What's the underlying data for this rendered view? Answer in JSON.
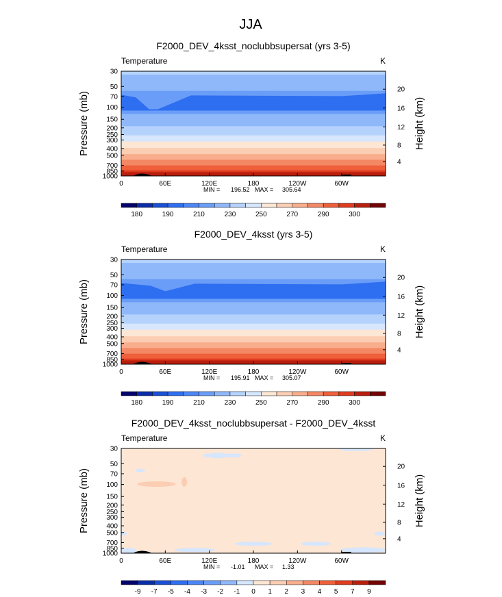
{
  "figure": {
    "title": "JJA"
  },
  "chart_data": [
    {
      "type": "heatmap",
      "title": "F2000_DEV_4ksst_noclubbsupersat (yrs 3-5)",
      "variable": "Temperature",
      "units": "K",
      "ylabel": "Pressure (mb)",
      "y2label": "Height (km)",
      "xticks": [
        "0",
        "60E",
        "120E",
        "180",
        "120W",
        "60W"
      ],
      "yticks": [
        30,
        50,
        70,
        100,
        150,
        200,
        250,
        300,
        400,
        500,
        700,
        850,
        1000
      ],
      "y2ticks": [
        4,
        8,
        12,
        16,
        20
      ],
      "ylim": [
        30,
        1000
      ],
      "xlim": [
        0,
        360
      ],
      "stats": {
        "min_label": "MIN = ",
        "min": "196.52",
        "max_label": "MAX = ",
        "max": "305.64"
      },
      "colorbar": {
        "levels": [
          175,
          180,
          185,
          190,
          200,
          210,
          220,
          230,
          240,
          250,
          260,
          270,
          280,
          290,
          295,
          300
        ],
        "labels": [
          "180",
          "190",
          "210",
          "230",
          "250",
          "270",
          "290",
          "300"
        ],
        "colors": [
          "#03036b",
          "#0a2ca8",
          "#1a4fd6",
          "#2e6ef0",
          "#4c86f5",
          "#6a9df7",
          "#8fb8fa",
          "#b4d2fc",
          "#d6e6fd",
          "#fde6d4",
          "#fbcdb2",
          "#f8ad8c",
          "#f48764",
          "#ee5f3a",
          "#df3b1e",
          "#b91e0d",
          "#720404"
        ]
      }
    },
    {
      "type": "heatmap",
      "title": "F2000_DEV_4ksst (yrs 3-5)",
      "variable": "Temperature",
      "units": "K",
      "ylabel": "Pressure (mb)",
      "y2label": "Height (km)",
      "xticks": [
        "0",
        "60E",
        "120E",
        "180",
        "120W",
        "60W"
      ],
      "yticks": [
        30,
        50,
        70,
        100,
        150,
        200,
        250,
        300,
        400,
        500,
        700,
        850,
        1000
      ],
      "y2ticks": [
        4,
        8,
        12,
        16,
        20
      ],
      "ylim": [
        30,
        1000
      ],
      "xlim": [
        0,
        360
      ],
      "stats": {
        "min_label": "MIN = ",
        "min": "195.91",
        "max_label": "MAX = ",
        "max": "305.07"
      },
      "colorbar": {
        "levels": [
          175,
          180,
          185,
          190,
          200,
          210,
          220,
          230,
          240,
          250,
          260,
          270,
          280,
          290,
          295,
          300
        ],
        "labels": [
          "180",
          "190",
          "210",
          "230",
          "250",
          "270",
          "290",
          "300"
        ],
        "colors": [
          "#03036b",
          "#0a2ca8",
          "#1a4fd6",
          "#2e6ef0",
          "#4c86f5",
          "#6a9df7",
          "#8fb8fa",
          "#b4d2fc",
          "#d6e6fd",
          "#fde6d4",
          "#fbcdb2",
          "#f8ad8c",
          "#f48764",
          "#ee5f3a",
          "#df3b1e",
          "#b91e0d",
          "#720404"
        ]
      }
    },
    {
      "type": "heatmap",
      "title": "F2000_DEV_4ksst_noclubbsupersat - F2000_DEV_4ksst",
      "variable": "Temperature",
      "units": "K",
      "ylabel": "Pressure (mb)",
      "y2label": "Height (km)",
      "xticks": [
        "0",
        "60E",
        "120E",
        "180",
        "120W",
        "60W"
      ],
      "yticks": [
        30,
        50,
        70,
        100,
        150,
        200,
        250,
        300,
        400,
        500,
        700,
        850,
        1000
      ],
      "y2ticks": [
        4,
        8,
        12,
        16,
        20
      ],
      "ylim": [
        30,
        1000
      ],
      "xlim": [
        0,
        360
      ],
      "stats": {
        "min_label": "MIN = ",
        "min": "-1.01",
        "max_label": "MAX = ",
        "max": "1.33"
      },
      "colorbar": {
        "labels": [
          "-9",
          "-7",
          "-5",
          "-4",
          "-3",
          "-2",
          "-1",
          "0",
          "1",
          "2",
          "3",
          "4",
          "5",
          "7",
          "9"
        ],
        "colors": [
          "#03036b",
          "#0a2ca8",
          "#1a4fd6",
          "#2e6ef0",
          "#4c86f5",
          "#6a9df7",
          "#8fb8fa",
          "#d6e6fd",
          "#fde6d4",
          "#fbcdb2",
          "#f8ad8c",
          "#f48764",
          "#ee5f3a",
          "#df3b1e",
          "#b91e0d",
          "#720404"
        ]
      }
    }
  ]
}
